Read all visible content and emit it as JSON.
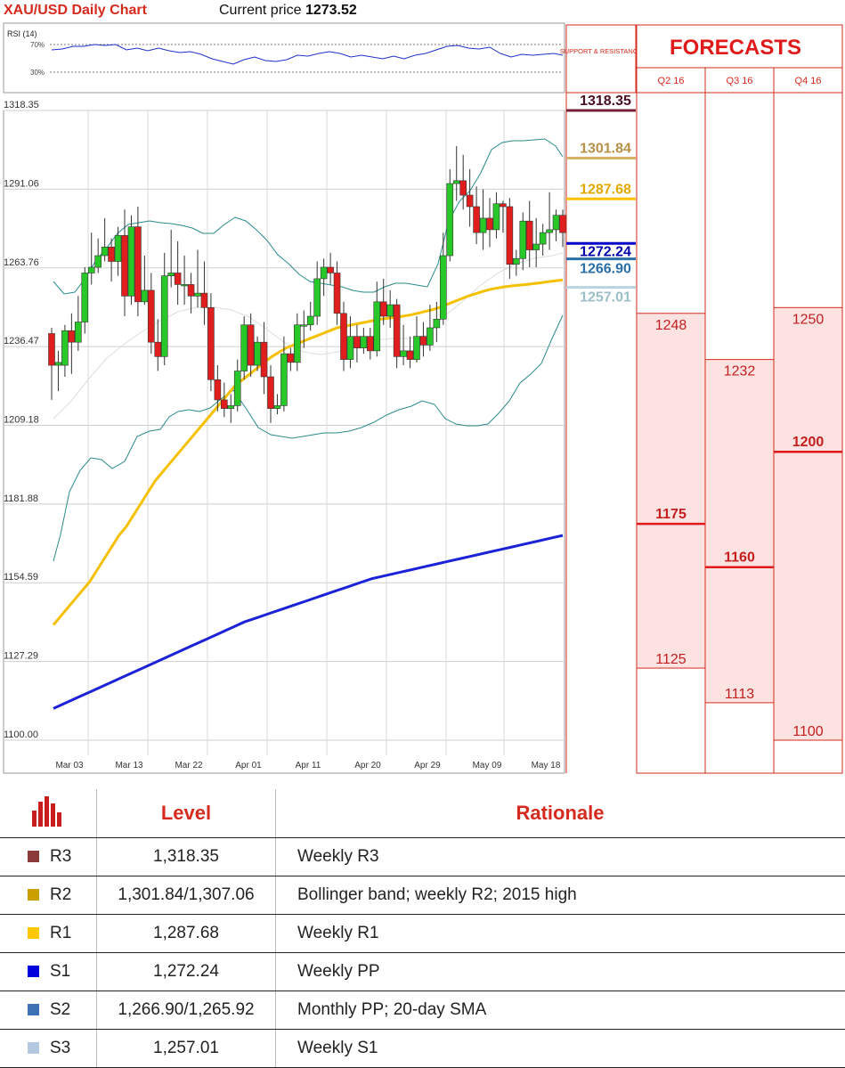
{
  "header": {
    "title": "XAU/USD Daily Chart",
    "price_label": "Current price",
    "price_value": "1273.52"
  },
  "chart_data": {
    "type": "candlestick",
    "rsi_label": "RSI (14)",
    "rsi_levels": [
      "70%",
      "30%"
    ],
    "y_ticks": [
      "1318.35",
      "1291.06",
      "1263.76",
      "1236.47",
      "1209.18",
      "1181.88",
      "1154.59",
      "1127.29",
      "1100.00"
    ],
    "ylim": [
      1100,
      1318.35
    ],
    "x_ticks": [
      "Mar 03",
      "Mar 13",
      "Mar 22",
      "Apr 01",
      "Apr 11",
      "Apr 20",
      "Apr 29",
      "May 09",
      "May 18"
    ],
    "candles": [
      [
        1241,
        1230,
        1243,
        1218
      ],
      [
        1230,
        1231,
        1235,
        1221
      ],
      [
        1230,
        1242,
        1244,
        1226
      ],
      [
        1242,
        1238,
        1248,
        1227
      ],
      [
        1238,
        1245,
        1254,
        1235
      ],
      [
        1245,
        1262,
        1264,
        1241
      ],
      [
        1262,
        1264,
        1276,
        1258
      ],
      [
        1264,
        1268,
        1274,
        1262
      ],
      [
        1268,
        1271,
        1281,
        1266
      ],
      [
        1271,
        1266,
        1274,
        1259
      ],
      [
        1266,
        1275,
        1278,
        1261
      ],
      [
        1275,
        1254,
        1284,
        1247
      ],
      [
        1254,
        1278,
        1282,
        1251
      ],
      [
        1278,
        1252,
        1285,
        1247
      ],
      [
        1252,
        1256,
        1268,
        1251
      ],
      [
        1256,
        1238,
        1262,
        1234
      ],
      [
        1238,
        1233,
        1246,
        1228
      ],
      [
        1233,
        1261,
        1269,
        1230
      ],
      [
        1261,
        1262,
        1277,
        1257
      ],
      [
        1262,
        1258,
        1273,
        1251
      ],
      [
        1258,
        1258,
        1268,
        1251
      ],
      [
        1258,
        1254,
        1262,
        1248
      ],
      [
        1254,
        1255,
        1270,
        1250
      ],
      [
        1255,
        1250,
        1266,
        1244
      ],
      [
        1250,
        1225,
        1255,
        1221
      ],
      [
        1225,
        1218,
        1230,
        1214
      ],
      [
        1218,
        1215,
        1224,
        1212
      ],
      [
        1215,
        1216,
        1220,
        1210
      ],
      [
        1216,
        1228,
        1232,
        1214
      ],
      [
        1228,
        1244,
        1247,
        1225
      ],
      [
        1244,
        1230,
        1248,
        1226
      ],
      [
        1230,
        1238,
        1240,
        1228
      ],
      [
        1238,
        1226,
        1245,
        1220
      ],
      [
        1226,
        1215,
        1230,
        1210
      ],
      [
        1215,
        1216,
        1220,
        1213
      ],
      [
        1216,
        1234,
        1240,
        1214
      ],
      [
        1234,
        1231,
        1236,
        1228
      ],
      [
        1231,
        1244,
        1248,
        1228
      ],
      [
        1244,
        1244,
        1249,
        1236
      ],
      [
        1244,
        1247,
        1252,
        1242
      ],
      [
        1247,
        1260,
        1266,
        1244
      ],
      [
        1260,
        1264,
        1267,
        1254
      ],
      [
        1264,
        1262,
        1269,
        1258
      ],
      [
        1262,
        1248,
        1266,
        1244
      ],
      [
        1248,
        1232,
        1252,
        1228
      ],
      [
        1232,
        1240,
        1247,
        1229
      ],
      [
        1240,
        1236,
        1244,
        1231
      ],
      [
        1236,
        1240,
        1243,
        1234
      ],
      [
        1240,
        1235,
        1243,
        1232
      ],
      [
        1235,
        1252,
        1259,
        1233
      ],
      [
        1252,
        1247,
        1260,
        1244
      ],
      [
        1247,
        1251,
        1256,
        1243
      ],
      [
        1251,
        1233,
        1253,
        1229
      ],
      [
        1233,
        1235,
        1244,
        1230
      ],
      [
        1235,
        1232,
        1240,
        1229
      ],
      [
        1232,
        1240,
        1247,
        1231
      ],
      [
        1240,
        1237,
        1245,
        1233
      ],
      [
        1237,
        1243,
        1251,
        1235
      ],
      [
        1243,
        1246,
        1252,
        1238
      ],
      [
        1246,
        1268,
        1276,
        1244
      ],
      [
        1268,
        1293,
        1298,
        1266
      ],
      [
        1293,
        1294,
        1306,
        1287
      ],
      [
        1294,
        1289,
        1303,
        1284
      ],
      [
        1289,
        1285,
        1298,
        1278
      ],
      [
        1285,
        1276,
        1292,
        1272
      ],
      [
        1276,
        1281,
        1291,
        1270
      ],
      [
        1281,
        1277,
        1288,
        1271
      ],
      [
        1277,
        1286,
        1290,
        1274
      ],
      [
        1286,
        1285,
        1287,
        1276
      ],
      [
        1285,
        1265,
        1288,
        1260
      ],
      [
        1265,
        1267,
        1270,
        1261
      ],
      [
        1267,
        1280,
        1283,
        1263
      ],
      [
        1280,
        1270,
        1287,
        1264
      ],
      [
        1270,
        1272,
        1281,
        1264
      ],
      [
        1272,
        1276,
        1279,
        1268
      ],
      [
        1276,
        1277,
        1290,
        1270
      ],
      [
        1277,
        1282,
        1284,
        1273
      ],
      [
        1282,
        1276,
        1284,
        1271
      ]
    ],
    "ma_slow": [
      1140,
      1143,
      1146,
      1149,
      1152,
      1155,
      1159,
      1163,
      1167,
      1171,
      1174,
      1178,
      1182,
      1186,
      1190,
      1193,
      1196,
      1199,
      1202,
      1205,
      1208,
      1211,
      1214,
      1217,
      1220,
      1223,
      1225,
      1227,
      1229,
      1231,
      1233,
      1234.5,
      1236,
      1237,
      1238,
      1239,
      1240,
      1241,
      1242,
      1243,
      1243.5,
      1244,
      1244.5,
      1245,
      1245.5,
      1246,
      1246.3,
      1246.6,
      1247,
      1247.4,
      1248,
      1248.6,
      1249.2,
      1250,
      1251,
      1252,
      1253,
      1254,
      1254.8,
      1255.6,
      1256.3,
      1256.8,
      1257.2,
      1257.5,
      1257.8,
      1258,
      1258.3,
      1258.6,
      1259,
      1259.3,
      1259.6
    ],
    "ma_long": [
      1111,
      1113,
      1115,
      1117,
      1119,
      1121,
      1123,
      1125,
      1127,
      1129,
      1131,
      1133,
      1135,
      1137,
      1139,
      1141,
      1142.5,
      1144,
      1145.5,
      1147,
      1148.5,
      1150,
      1151.5,
      1153,
      1154.5,
      1156,
      1157,
      1158,
      1159,
      1160,
      1161,
      1162,
      1163,
      1164,
      1165,
      1166,
      1167,
      1168,
      1169,
      1170,
      1171
    ],
    "forecast_header": "FORECASTS",
    "support_header": "SUPPORT & RESISTANCE",
    "levels": [
      {
        "value": "1318.35",
        "price": 1318.35,
        "color": "#7a1f3a",
        "text": "#4a0f22"
      },
      {
        "value": "1301.84",
        "price": 1301.84,
        "color": "#d9b26a",
        "text": "#b89048"
      },
      {
        "value": "1287.68",
        "price": 1287.68,
        "color": "#ffc000",
        "text": "#e0a800"
      },
      {
        "value": "1272.24",
        "price": 1272.24,
        "color": "#0000cc",
        "text": "#0000aa"
      },
      {
        "value": "1266.90",
        "price": 1266.9,
        "color": "#2a6fa8",
        "text": "#2a6fa8"
      },
      {
        "value": "1257.01",
        "price": 1257.01,
        "color": "#b8d4de",
        "text": "#9cc0c8"
      }
    ],
    "forecasts": [
      {
        "quarter": "Q2 16",
        "high": "1248",
        "mid": "1175",
        "low": "1125",
        "h": 1248,
        "m": 1175,
        "l": 1125
      },
      {
        "quarter": "Q3 16",
        "high": "1232",
        "mid": "1160",
        "low": "1113",
        "h": 1232,
        "m": 1160,
        "l": 1113
      },
      {
        "quarter": "Q4 16",
        "high": "1250",
        "mid": "1200",
        "low": "1100",
        "h": 1250,
        "m": 1200,
        "l": 1100
      }
    ]
  },
  "table": {
    "col_level": "Level",
    "col_rationale": "Rationale",
    "rows": [
      {
        "tag": "R3",
        "level": "1,318.35",
        "rationale": "Weekly R3",
        "color": "#8b3a3a"
      },
      {
        "tag": "R2",
        "level": "1,301.84/1,307.06",
        "rationale": "Bollinger band; weekly R2; 2015 high",
        "color": "#c9a000"
      },
      {
        "tag": "R1",
        "level": "1,287.68",
        "rationale": "Weekly R1",
        "color": "#ffc800"
      },
      {
        "tag": "S1",
        "level": "1,272.24",
        "rationale": "Weekly PP",
        "color": "#0000dd"
      },
      {
        "tag": "S2",
        "level": "1,266.90/1,265.92",
        "rationale": "Monthly PP; 20-day SMA",
        "color": "#3d72b4"
      },
      {
        "tag": "S3",
        "level": "1,257.01",
        "rationale": "Weekly S1",
        "color": "#b4c8e0"
      }
    ]
  }
}
